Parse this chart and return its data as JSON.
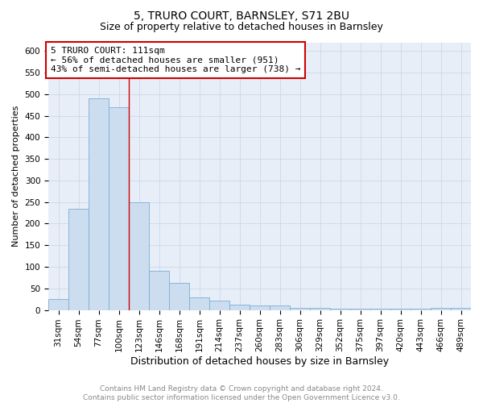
{
  "title": "5, TRURO COURT, BARNSLEY, S71 2BU",
  "subtitle": "Size of property relative to detached houses in Barnsley",
  "xlabel": "Distribution of detached houses by size in Barnsley",
  "ylabel": "Number of detached properties",
  "categories": [
    "31sqm",
    "54sqm",
    "77sqm",
    "100sqm",
    "123sqm",
    "146sqm",
    "168sqm",
    "191sqm",
    "214sqm",
    "237sqm",
    "260sqm",
    "283sqm",
    "306sqm",
    "329sqm",
    "352sqm",
    "375sqm",
    "397sqm",
    "420sqm",
    "443sqm",
    "466sqm",
    "489sqm"
  ],
  "values": [
    25,
    235,
    490,
    470,
    250,
    90,
    63,
    30,
    22,
    13,
    10,
    10,
    5,
    5,
    3,
    3,
    3,
    3,
    3,
    5,
    5
  ],
  "bar_color": "#ccddf0",
  "bar_edge_color": "#7aafd4",
  "bar_edge_width": 0.6,
  "grid_color": "#c8d4e8",
  "background_color": "#e8eef8",
  "ylim": [
    0,
    620
  ],
  "yticks": [
    0,
    50,
    100,
    150,
    200,
    250,
    300,
    350,
    400,
    450,
    500,
    550,
    600
  ],
  "red_line_x": 3.5,
  "annotation_text": "5 TRURO COURT: 111sqm\n← 56% of detached houses are smaller (951)\n43% of semi-detached houses are larger (738) →",
  "annotation_fontsize": 8.0,
  "annotation_box_color": "#cc0000",
  "title_fontsize": 10,
  "subtitle_fontsize": 9,
  "ylabel_fontsize": 8,
  "xlabel_fontsize": 9,
  "tick_fontsize": 7.5,
  "footer_text": "Contains HM Land Registry data © Crown copyright and database right 2024.\nContains public sector information licensed under the Open Government Licence v3.0.",
  "footer_fontsize": 6.5
}
